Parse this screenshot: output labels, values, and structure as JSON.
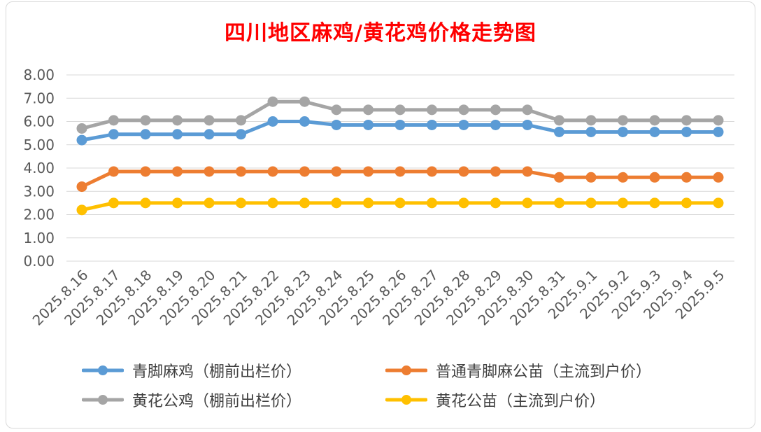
{
  "chart_data": {
    "type": "line",
    "title": "四川地区麻鸡/黄花鸡价格走势图",
    "xlabel": "",
    "ylabel": "",
    "ylim": [
      0,
      8
    ],
    "yticks": [
      "0.00",
      "1.00",
      "2.00",
      "3.00",
      "4.00",
      "5.00",
      "6.00",
      "7.00",
      "8.00"
    ],
    "grid": true,
    "legend_position": "bottom",
    "categories": [
      "2025.8.16",
      "2025.8.17",
      "2025.8.18",
      "2025.8.19",
      "2025.8.20",
      "2025.8.21",
      "2025.8.22",
      "2025.8.23",
      "2025.8.24",
      "2025.8.25",
      "2025.8.26",
      "2025.8.27",
      "2025.8.28",
      "2025.8.29",
      "2025.8.30",
      "2025.8.31",
      "2025.9.1",
      "2025.9.2",
      "2025.9.3",
      "2025.9.4",
      "2025.9.5"
    ],
    "series": [
      {
        "name": "青脚麻鸡（棚前出栏价）",
        "color": "#5b9bd5",
        "values": [
          5.2,
          5.45,
          5.45,
          5.45,
          5.45,
          5.45,
          6.0,
          6.0,
          5.85,
          5.85,
          5.85,
          5.85,
          5.85,
          5.85,
          5.85,
          5.55,
          5.55,
          5.55,
          5.55,
          5.55,
          5.55
        ]
      },
      {
        "name": "普通青脚麻公苗（主流到户价）",
        "color": "#ed7d31",
        "values": [
          3.2,
          3.85,
          3.85,
          3.85,
          3.85,
          3.85,
          3.85,
          3.85,
          3.85,
          3.85,
          3.85,
          3.85,
          3.85,
          3.85,
          3.85,
          3.6,
          3.6,
          3.6,
          3.6,
          3.6,
          3.6
        ]
      },
      {
        "name": "黄花公鸡（棚前出栏价）",
        "color": "#a5a5a5",
        "values": [
          5.7,
          6.05,
          6.05,
          6.05,
          6.05,
          6.05,
          6.85,
          6.85,
          6.5,
          6.5,
          6.5,
          6.5,
          6.5,
          6.5,
          6.5,
          6.05,
          6.05,
          6.05,
          6.05,
          6.05,
          6.05
        ]
      },
      {
        "name": "黄花公苗（主流到户价）",
        "color": "#ffc000",
        "values": [
          2.2,
          2.5,
          2.5,
          2.5,
          2.5,
          2.5,
          2.5,
          2.5,
          2.5,
          2.5,
          2.5,
          2.5,
          2.5,
          2.5,
          2.5,
          2.5,
          2.5,
          2.5,
          2.5,
          2.5,
          2.5
        ]
      }
    ]
  }
}
